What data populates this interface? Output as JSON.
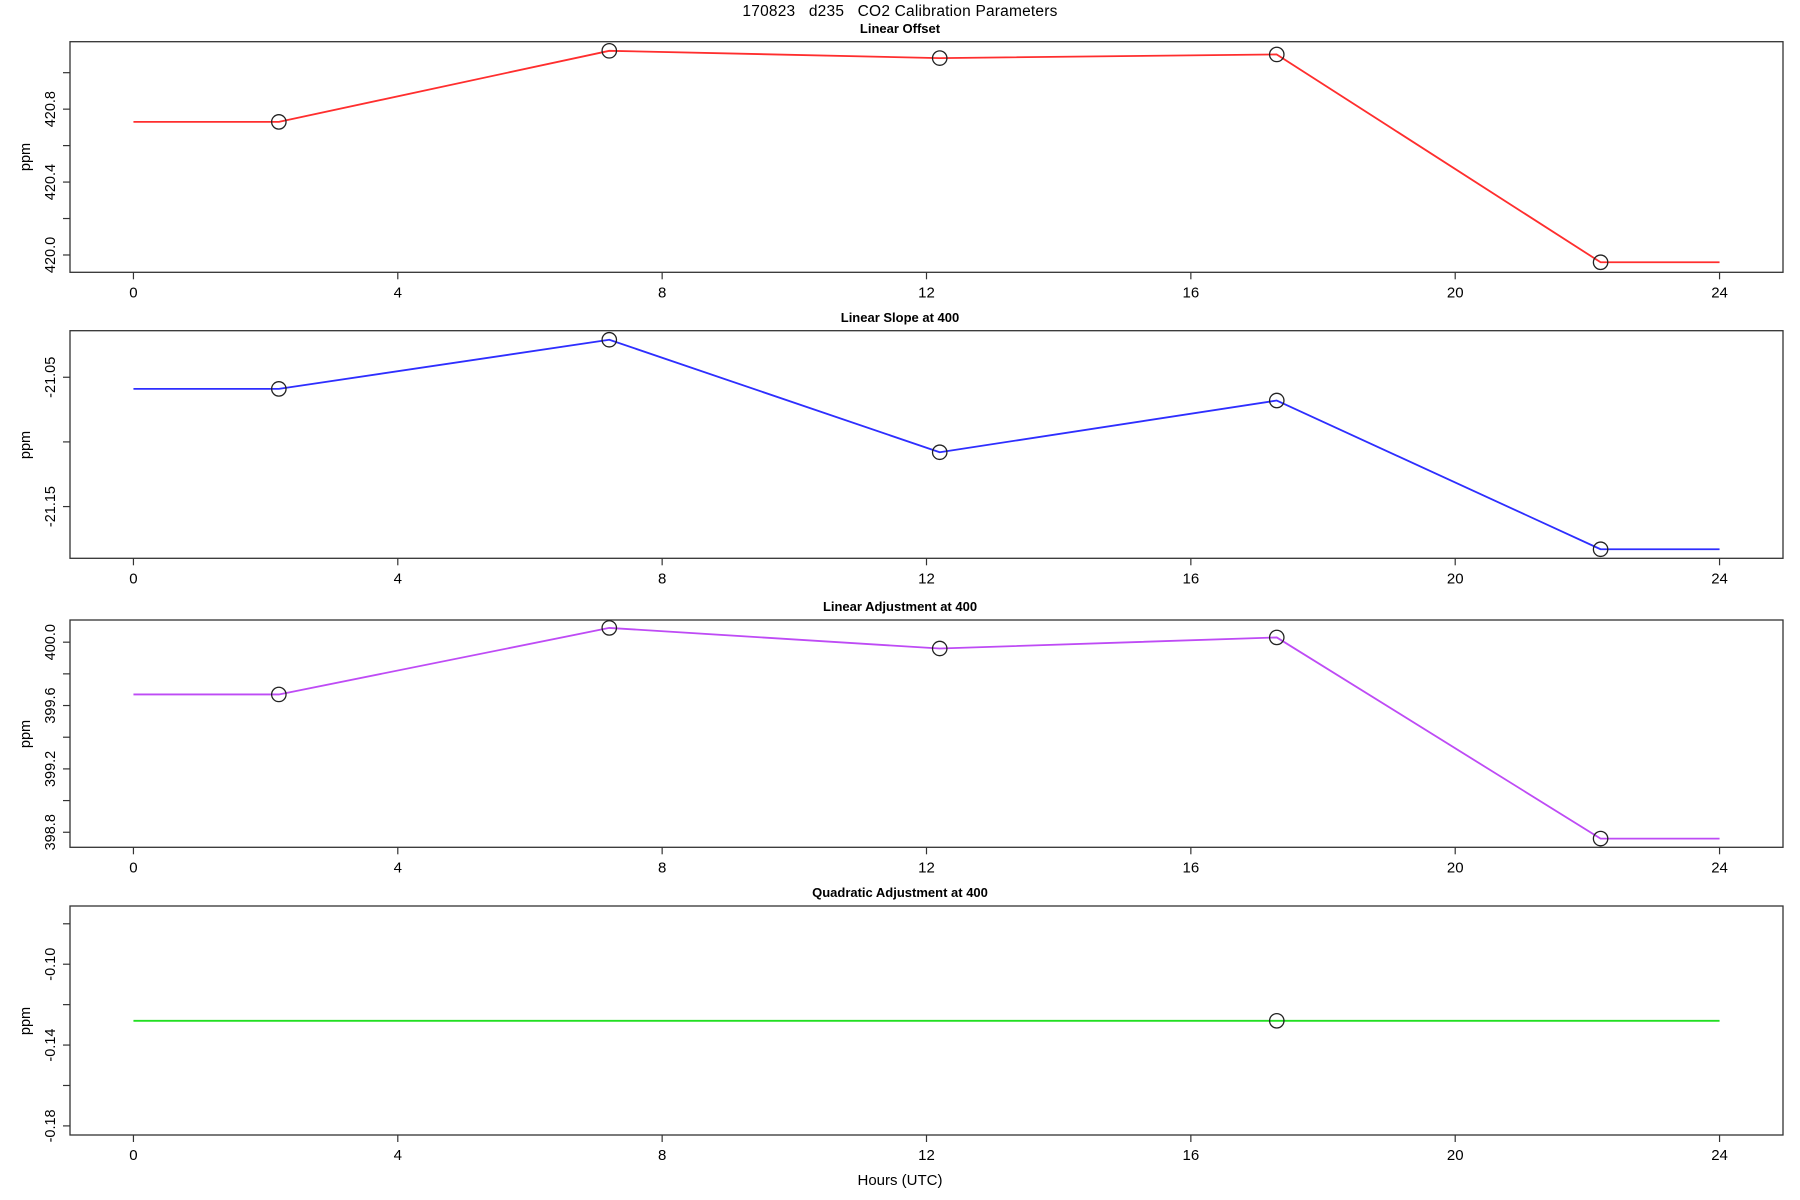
{
  "title": "170823   d235   CO2 Calibration Parameters",
  "xlabel": "Hours (UTC)",
  "chart_data": [
    {
      "type": "line",
      "title": "Linear Offset",
      "ylabel": "ppm",
      "color": "#FF2E2E",
      "marker": "open-circle",
      "x": [
        2.2,
        7.2,
        12.2,
        17.3,
        22.2
      ],
      "values": [
        420.73,
        421.12,
        421.08,
        421.1,
        419.96
      ],
      "line_flat_extension_xrange": [
        0,
        24
      ],
      "xticks": [
        0,
        4,
        8,
        12,
        16,
        20,
        24
      ],
      "ylim": [
        419.905,
        421.17
      ],
      "yticks": [
        {
          "value": 421.0
        },
        {
          "value": 420.8,
          "label": "420.8"
        },
        {
          "value": 420.6
        },
        {
          "value": 420.4,
          "label": "420.4"
        },
        {
          "value": 420.2
        },
        {
          "value": 420.0,
          "label": "420.0"
        }
      ]
    },
    {
      "type": "line",
      "title": "Linear Slope at 400",
      "ylabel": "ppm",
      "color": "#2E2EFF",
      "marker": "open-circle",
      "x": [
        2.2,
        7.2,
        12.2,
        17.3,
        22.2
      ],
      "values": [
        -21.059,
        -21.021,
        -21.108,
        -21.068,
        -21.183
      ],
      "line_flat_extension_xrange": [
        0,
        24
      ],
      "xticks": [
        0,
        4,
        8,
        12,
        16,
        20,
        24
      ],
      "ylim": [
        -21.19,
        -21.014
      ],
      "yticks": [
        {
          "value": -21.05,
          "label": "-21.05"
        },
        {
          "value": -21.1
        },
        {
          "value": -21.15,
          "label": "-21.15"
        }
      ]
    },
    {
      "type": "line",
      "title": "Linear Adjustment at 400",
      "ylabel": "ppm",
      "color": "#BE4BF5",
      "marker": "open-circle",
      "x": [
        2.2,
        7.2,
        12.2,
        17.3,
        22.2
      ],
      "values": [
        399.67,
        400.09,
        399.96,
        400.03,
        398.76
      ],
      "line_flat_extension_xrange": [
        0,
        24
      ],
      "xticks": [
        0,
        4,
        8,
        12,
        16,
        20,
        24
      ],
      "ylim": [
        398.705,
        400.14
      ],
      "yticks": [
        {
          "value": 400.0,
          "label": "400.0"
        },
        {
          "value": 399.8
        },
        {
          "value": 399.6,
          "label": "399.6"
        },
        {
          "value": 399.4
        },
        {
          "value": 399.2,
          "label": "399.2"
        },
        {
          "value": 399.0
        },
        {
          "value": 398.8,
          "label": "398.8"
        }
      ]
    },
    {
      "type": "line",
      "title": "Quadratic Adjustment at 400",
      "ylabel": "ppm",
      "color": "#22DF22",
      "marker": "open-circle",
      "x": [
        17.3
      ],
      "values": [
        -0.128
      ],
      "line_flat_extension_xrange": [
        0,
        24
      ],
      "xticks": [
        0,
        4,
        8,
        12,
        16,
        20,
        24
      ],
      "ylim": [
        -0.1845,
        -0.0712
      ],
      "yticks": [
        {
          "value": -0.08
        },
        {
          "value": -0.1,
          "label": "-0.10"
        },
        {
          "value": -0.12
        },
        {
          "value": -0.14,
          "label": "-0.14"
        },
        {
          "value": -0.16
        },
        {
          "value": -0.18,
          "label": "-0.18"
        }
      ]
    }
  ]
}
